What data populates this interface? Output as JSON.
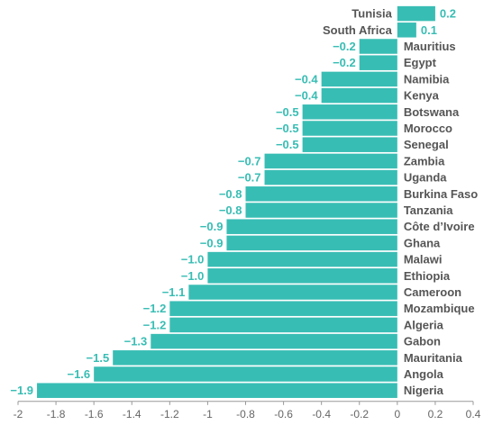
{
  "chart_data": {
    "type": "bar",
    "orientation": "horizontal",
    "categories": [
      "Tunisia",
      "South Africa",
      "Mauritius",
      "Egypt",
      "Namibia",
      "Kenya",
      "Botswana",
      "Morocco",
      "Senegal",
      "Zambia",
      "Uganda",
      "Burkina Faso",
      "Tanzania",
      "Côte d’Ivoire",
      "Ghana",
      "Malawi",
      "Ethiopia",
      "Cameroon",
      "Mozambique",
      "Algeria",
      "Gabon",
      "Mauritania",
      "Angola",
      "Nigeria"
    ],
    "values": [
      0.2,
      0.1,
      -0.2,
      -0.2,
      -0.4,
      -0.4,
      -0.5,
      -0.5,
      -0.5,
      -0.7,
      -0.7,
      -0.8,
      -0.8,
      -0.9,
      -0.9,
      -1.0,
      -1.0,
      -1.1,
      -1.2,
      -1.2,
      -1.3,
      -1.5,
      -1.6,
      -1.9
    ],
    "value_labels": [
      "0.2",
      "0.1",
      "−0.2",
      "−0.2",
      "−0.4",
      "−0.4",
      "−0.5",
      "−0.5",
      "−0.5",
      "−0.7",
      "−0.7",
      "−0.8",
      "−0.8",
      "−0.9",
      "−0.9",
      "−1.0",
      "−1.0",
      "−1.1",
      "−1.2",
      "−1.2",
      "−1.3",
      "−1.5",
      "−1.6",
      "−1.9"
    ],
    "xlim": [
      -2,
      0.4
    ],
    "xticks": [
      -2,
      -1.8,
      -1.6,
      -1.4,
      -1.2,
      -1,
      -0.8,
      -0.6,
      -0.4,
      -0.2,
      0,
      0.2,
      0.4
    ],
    "xtick_labels": [
      "-2",
      "-1.8",
      "-1.6",
      "-1.4",
      "-1.2",
      "-1",
      "-0.8",
      "-0.6",
      "-0.4",
      "-0.2",
      "0",
      "0.2",
      "0.4"
    ],
    "title": "",
    "xlabel": "",
    "ylabel": "",
    "grid": false,
    "bar_color": "#38bdb4",
    "label_color": "#555555"
  }
}
